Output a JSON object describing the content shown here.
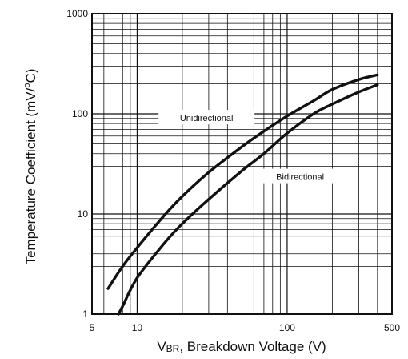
{
  "chart_data": {
    "type": "line",
    "x_scale": "log",
    "y_scale": "log",
    "xlim": [
      5,
      500
    ],
    "ylim": [
      1,
      1000
    ],
    "xlabel_main": "V",
    "xlabel_sub": "BR",
    "xlabel_rest": ", Breakdown Voltage (V)",
    "ylabel_pre": "Temperature Coefficient (mV/",
    "ylabel_sup": "o",
    "ylabel_post": "C)",
    "x_ticks": [
      {
        "value": 5,
        "label": "5"
      },
      {
        "value": 10,
        "label": "10"
      },
      {
        "value": 100,
        "label": "100"
      },
      {
        "value": 500,
        "label": "500"
      }
    ],
    "y_ticks": [
      {
        "value": 1,
        "label": "1"
      },
      {
        "value": 10,
        "label": "10"
      },
      {
        "value": 100,
        "label": "100"
      },
      {
        "value": 1000,
        "label": "1000"
      }
    ],
    "grid": true,
    "series": [
      {
        "name": "Unidirectional",
        "x": [
          6.4,
          8,
          10,
          15,
          20,
          30,
          50,
          70,
          100,
          150,
          200,
          300,
          400
        ],
        "y": [
          1.8,
          3.0,
          4.6,
          9.5,
          15,
          26,
          47,
          67,
          95,
          135,
          175,
          220,
          245
        ]
      },
      {
        "name": "Bidirectional",
        "x": [
          7.5,
          8,
          10,
          15,
          20,
          30,
          50,
          70,
          100,
          150,
          200,
          300,
          400
        ],
        "y": [
          1.0,
          1.2,
          2.3,
          5.0,
          8.0,
          14,
          27,
          40,
          64,
          100,
          125,
          165,
          195
        ]
      }
    ],
    "annotations": [
      {
        "text": "Unidirectional",
        "series": 0
      },
      {
        "text": "Bidirectional",
        "series": 1
      }
    ]
  }
}
